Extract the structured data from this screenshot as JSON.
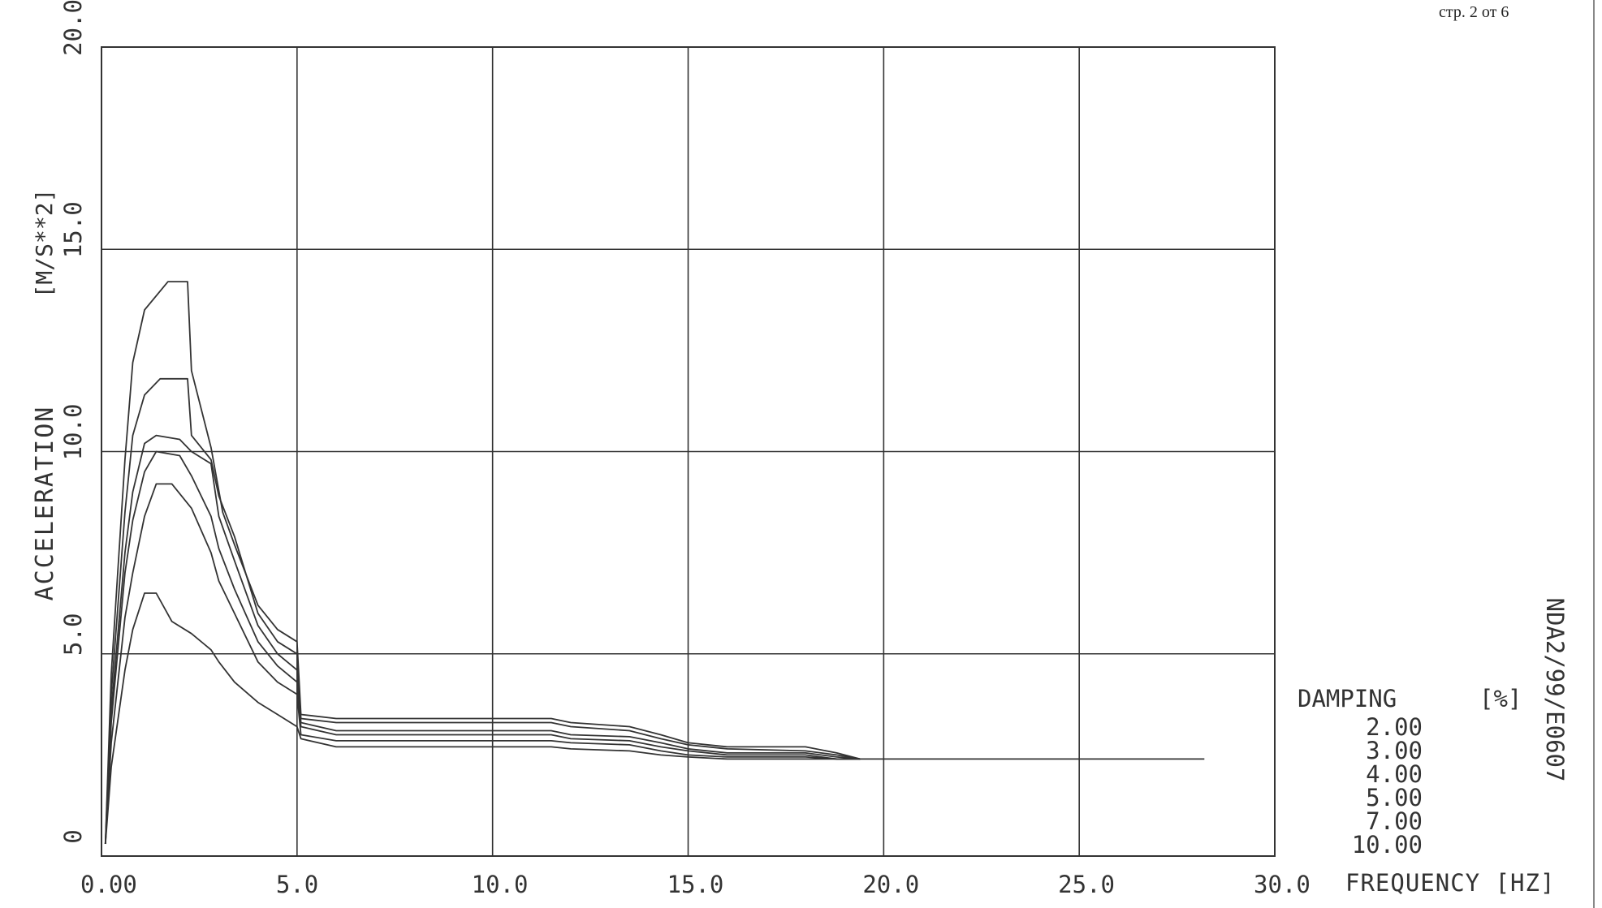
{
  "page_ref": "стр. 2 от 6",
  "doc_id": "NDA2/99/E0607",
  "chart_data": {
    "type": "line",
    "xlabel": "FREQUENCY [HZ]",
    "ylabel": "ACCELERATION",
    "yunit": "[M/S**2]",
    "xlim": [
      0,
      30
    ],
    "ylim": [
      0,
      20
    ],
    "x_ticks": [
      "0.00",
      "5.0",
      "10.0",
      "15.0",
      "20.0",
      "25.0",
      "30.0"
    ],
    "y_ticks": [
      "0",
      "5.0",
      "10.0",
      "15.0",
      "20.0"
    ],
    "grid": true,
    "legend_title": "DAMPING",
    "legend_unit": "[%]",
    "legend_entries": [
      "2.00",
      "3.00",
      "4.00",
      "5.00",
      "7.00",
      "10.00"
    ],
    "series": [
      {
        "name": "2.00",
        "points": [
          [
            0.1,
            0.3
          ],
          [
            0.25,
            4.5
          ],
          [
            0.6,
            9.8
          ],
          [
            0.8,
            12.2
          ],
          [
            1.1,
            13.5
          ],
          [
            1.7,
            14.2
          ],
          [
            2.2,
            14.2
          ],
          [
            2.3,
            12.0
          ],
          [
            2.8,
            10.1
          ],
          [
            3.1,
            8.5
          ],
          [
            3.4,
            7.7
          ],
          [
            4.0,
            6.2
          ],
          [
            4.5,
            5.6
          ],
          [
            5.0,
            5.3
          ],
          [
            5.1,
            3.5
          ],
          [
            6.0,
            3.4
          ],
          [
            11.5,
            3.4
          ],
          [
            12.0,
            3.3
          ],
          [
            13.5,
            3.2
          ],
          [
            14.3,
            3.0
          ],
          [
            15.0,
            2.8
          ],
          [
            16.0,
            2.7
          ],
          [
            18.0,
            2.7
          ],
          [
            18.8,
            2.55
          ],
          [
            19.4,
            2.4
          ],
          [
            25.0,
            2.4
          ],
          [
            28.2,
            2.4
          ]
        ]
      },
      {
        "name": "3.00",
        "points": [
          [
            0.1,
            0.3
          ],
          [
            0.25,
            4.0
          ],
          [
            0.6,
            8.5
          ],
          [
            0.8,
            10.4
          ],
          [
            1.1,
            11.4
          ],
          [
            1.5,
            11.8
          ],
          [
            2.2,
            11.8
          ],
          [
            2.3,
            10.4
          ],
          [
            2.8,
            9.8
          ],
          [
            3.0,
            8.9
          ],
          [
            3.4,
            7.9
          ],
          [
            4.0,
            6.0
          ],
          [
            4.5,
            5.3
          ],
          [
            5.0,
            5.0
          ],
          [
            5.1,
            3.4
          ],
          [
            6.0,
            3.3
          ],
          [
            11.5,
            3.3
          ],
          [
            12.0,
            3.2
          ],
          [
            13.5,
            3.1
          ],
          [
            14.3,
            2.9
          ],
          [
            15.0,
            2.75
          ],
          [
            16.0,
            2.65
          ],
          [
            18.0,
            2.6
          ],
          [
            18.8,
            2.5
          ],
          [
            19.4,
            2.4
          ]
        ]
      },
      {
        "name": "4.00",
        "points": [
          [
            0.1,
            0.3
          ],
          [
            0.25,
            3.6
          ],
          [
            0.6,
            7.5
          ],
          [
            0.8,
            9.0
          ],
          [
            1.1,
            10.2
          ],
          [
            1.4,
            10.4
          ],
          [
            2.0,
            10.3
          ],
          [
            2.3,
            10.0
          ],
          [
            2.8,
            9.7
          ],
          [
            3.0,
            8.4
          ],
          [
            3.4,
            7.3
          ],
          [
            4.0,
            5.7
          ],
          [
            4.5,
            5.0
          ],
          [
            5.0,
            4.6
          ],
          [
            5.1,
            3.3
          ],
          [
            6.0,
            3.1
          ],
          [
            11.5,
            3.1
          ],
          [
            12.0,
            3.0
          ],
          [
            13.5,
            2.95
          ],
          [
            14.3,
            2.8
          ],
          [
            15.0,
            2.65
          ],
          [
            16.0,
            2.55
          ],
          [
            18.0,
            2.55
          ],
          [
            18.8,
            2.45
          ],
          [
            19.4,
            2.4
          ]
        ]
      },
      {
        "name": "5.00",
        "points": [
          [
            0.1,
            0.3
          ],
          [
            0.25,
            3.3
          ],
          [
            0.6,
            7.0
          ],
          [
            0.8,
            8.3
          ],
          [
            1.1,
            9.5
          ],
          [
            1.4,
            10.0
          ],
          [
            2.0,
            9.9
          ],
          [
            2.3,
            9.4
          ],
          [
            2.8,
            8.4
          ],
          [
            3.0,
            7.6
          ],
          [
            3.4,
            6.6
          ],
          [
            4.0,
            5.3
          ],
          [
            4.5,
            4.7
          ],
          [
            5.0,
            4.3
          ],
          [
            5.1,
            3.2
          ],
          [
            6.0,
            3.0
          ],
          [
            11.5,
            3.0
          ],
          [
            12.0,
            2.9
          ],
          [
            13.5,
            2.85
          ],
          [
            14.3,
            2.7
          ],
          [
            15.0,
            2.6
          ],
          [
            16.0,
            2.5
          ],
          [
            18.0,
            2.5
          ],
          [
            18.8,
            2.4
          ],
          [
            19.4,
            2.4
          ]
        ]
      },
      {
        "name": "7.00",
        "points": [
          [
            0.1,
            0.3
          ],
          [
            0.25,
            2.8
          ],
          [
            0.6,
            5.9
          ],
          [
            0.8,
            7.0
          ],
          [
            1.1,
            8.4
          ],
          [
            1.4,
            9.2
          ],
          [
            1.8,
            9.2
          ],
          [
            2.3,
            8.6
          ],
          [
            2.8,
            7.5
          ],
          [
            3.0,
            6.8
          ],
          [
            3.4,
            6.0
          ],
          [
            4.0,
            4.8
          ],
          [
            4.5,
            4.3
          ],
          [
            5.0,
            4.0
          ],
          [
            5.1,
            3.0
          ],
          [
            6.0,
            2.85
          ],
          [
            11.5,
            2.85
          ],
          [
            12.0,
            2.8
          ],
          [
            13.5,
            2.75
          ],
          [
            14.3,
            2.6
          ],
          [
            15.0,
            2.5
          ],
          [
            16.0,
            2.45
          ],
          [
            18.0,
            2.45
          ],
          [
            18.8,
            2.4
          ],
          [
            19.4,
            2.4
          ]
        ]
      },
      {
        "name": "10.00",
        "points": [
          [
            0.1,
            0.3
          ],
          [
            0.25,
            2.2
          ],
          [
            0.6,
            4.6
          ],
          [
            0.8,
            5.6
          ],
          [
            1.1,
            6.5
          ],
          [
            1.4,
            6.5
          ],
          [
            1.8,
            5.8
          ],
          [
            2.3,
            5.5
          ],
          [
            2.8,
            5.1
          ],
          [
            3.0,
            4.8
          ],
          [
            3.4,
            4.3
          ],
          [
            4.0,
            3.8
          ],
          [
            4.5,
            3.5
          ],
          [
            5.0,
            3.2
          ],
          [
            5.1,
            2.9
          ],
          [
            6.0,
            2.7
          ],
          [
            11.5,
            2.7
          ],
          [
            12.0,
            2.65
          ],
          [
            13.5,
            2.6
          ],
          [
            14.3,
            2.5
          ],
          [
            15.0,
            2.45
          ],
          [
            16.0,
            2.4
          ],
          [
            19.4,
            2.4
          ]
        ]
      }
    ]
  }
}
